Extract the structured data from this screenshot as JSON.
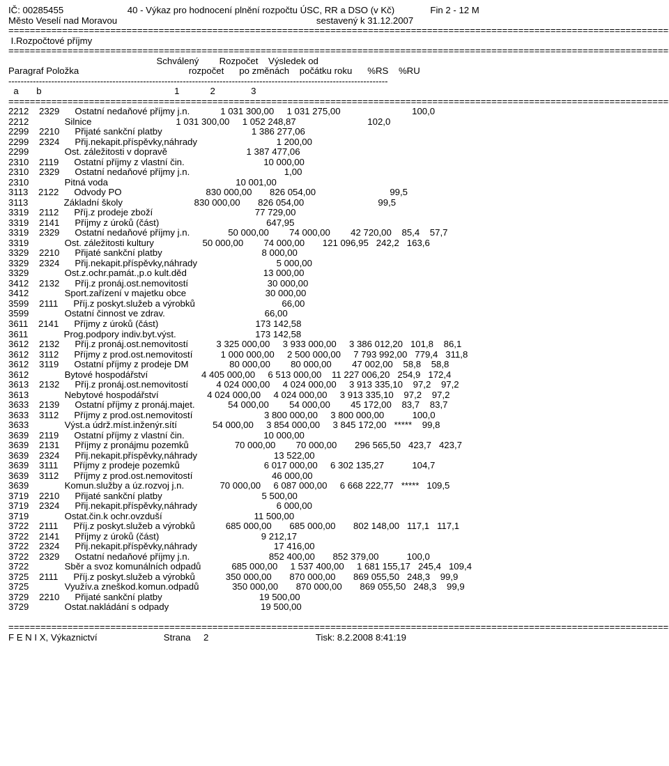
{
  "header": {
    "ic_label": "IČ:",
    "ic": "00285455",
    "title": "40 - Výkaz pro hodnocení plnění rozpočtu ÚSC, RR a DSO (v Kč)",
    "fin": "Fin 2 - 12 M",
    "city": "Město Veselí nad Moravou",
    "compiled": "sestavený k 31.12.2007"
  },
  "section": "I.Rozpočtové příjmy",
  "colhead": {
    "l1_c1": "Schválený",
    "l1_c2": "Rozpočet",
    "l1_c3": "Výsledek od",
    "l2_a": "Paragraf Položka",
    "l2_c1": "rozpočet",
    "l2_c2": "po změnách",
    "l2_c3": "počátku roku",
    "l2_rs": "%RS",
    "l2_ru": "%RU",
    "ab": "a       b",
    "n1": "1",
    "n2": "2",
    "n3": "3"
  },
  "rows": [
    {
      "p": "2212",
      "i": "2329",
      "d": "Ostatní nedaňové příjmy j.n.",
      "c1": "1 031 300,00",
      "c2": "1 031 275,00",
      "c3": "",
      "rs": "",
      "ru": "100,0"
    },
    {
      "p": "2212",
      "i": "",
      "d": "Silnice",
      "c1": "1 031 300,00",
      "c2": "1 052 248,87",
      "c3": "",
      "rs": "",
      "ru": "102,0"
    },
    {
      "p": "2299",
      "i": "2210",
      "d": "Přijaté sankční platby",
      "c1": "",
      "c2": "1 386 277,06",
      "c3": "",
      "rs": "",
      "ru": ""
    },
    {
      "p": "2299",
      "i": "2324",
      "d": "Přij.nekapit.příspěvky,náhrady",
      "c1": "",
      "c2": "1 200,00",
      "c3": "",
      "rs": "",
      "ru": ""
    },
    {
      "p": "2299",
      "i": "",
      "d": "Ost. záležitosti v dopravě",
      "c1": "",
      "c2": "1 387 477,06",
      "c3": "",
      "rs": "",
      "ru": ""
    },
    {
      "p": "2310",
      "i": "2119",
      "d": "Ostatní příjmy z vlastní čin.",
      "c1": "",
      "c2": "10 000,00",
      "c3": "",
      "rs": "",
      "ru": ""
    },
    {
      "p": "2310",
      "i": "2329",
      "d": "Ostatní nedaňové příjmy j.n.",
      "c1": "",
      "c2": "1,00",
      "c3": "",
      "rs": "",
      "ru": ""
    },
    {
      "p": "2310",
      "i": "",
      "d": "Pitná voda",
      "c1": "",
      "c2": "10 001,00",
      "c3": "",
      "rs": "",
      "ru": ""
    },
    {
      "p": "3113",
      "i": "2122",
      "d": "Odvody PO",
      "c1": "830 000,00",
      "c2": "826 054,00",
      "c3": "",
      "rs": "",
      "ru": "99,5"
    },
    {
      "p": "3113",
      "i": "",
      "d": "Základní školy",
      "c1": "830 000,00",
      "c2": "826 054,00",
      "c3": "",
      "rs": "",
      "ru": "99,5"
    },
    {
      "p": "3319",
      "i": "2112",
      "d": "Příj.z prodeje zboží",
      "c1": "",
      "c2": "77 729,00",
      "c3": "",
      "rs": "",
      "ru": ""
    },
    {
      "p": "3319",
      "i": "2141",
      "d": "Příjmy z úroků (část)",
      "c1": "",
      "c2": "647,95",
      "c3": "",
      "rs": "",
      "ru": ""
    },
    {
      "p": "3319",
      "i": "2329",
      "d": "Ostatní nedaňové příjmy j.n.",
      "c1": "50 000,00",
      "c2": "74 000,00",
      "c3": "42 720,00",
      "rs": "85,4",
      "ru": "57,7"
    },
    {
      "p": "3319",
      "i": "",
      "d": "Ost. záležitosti kultury",
      "c1": "50 000,00",
      "c2": "74 000,00",
      "c3": "121 096,95",
      "rs": "242,2",
      "ru": "163,6"
    },
    {
      "p": "3329",
      "i": "2210",
      "d": "Přijaté sankční platby",
      "c1": "",
      "c2": "8 000,00",
      "c3": "",
      "rs": "",
      "ru": ""
    },
    {
      "p": "3329",
      "i": "2324",
      "d": "Přij.nekapit.příspěvky,náhrady",
      "c1": "",
      "c2": "5 000,00",
      "c3": "",
      "rs": "",
      "ru": ""
    },
    {
      "p": "3329",
      "i": "",
      "d": "Ost.z.ochr.památ.,p.o kult.děd",
      "c1": "",
      "c2": "13 000,00",
      "c3": "",
      "rs": "",
      "ru": ""
    },
    {
      "p": "3412",
      "i": "2132",
      "d": "Příj.z pronáj.ost.nemovitostí",
      "c1": "",
      "c2": "30 000,00",
      "c3": "",
      "rs": "",
      "ru": ""
    },
    {
      "p": "3412",
      "i": "",
      "d": "Sport.zařízení v majetku obce",
      "c1": "",
      "c2": "30 000,00",
      "c3": "",
      "rs": "",
      "ru": ""
    },
    {
      "p": "3599",
      "i": "2111",
      "d": "Příj.z poskyt.služeb a výrobků",
      "c1": "",
      "c2": "66,00",
      "c3": "",
      "rs": "",
      "ru": ""
    },
    {
      "p": "3599",
      "i": "",
      "d": "Ostatní činnost ve zdrav.",
      "c1": "",
      "c2": "66,00",
      "c3": "",
      "rs": "",
      "ru": ""
    },
    {
      "p": "3611",
      "i": "2141",
      "d": "Příjmy z úroků (část)",
      "c1": "",
      "c2": "173 142,58",
      "c3": "",
      "rs": "",
      "ru": ""
    },
    {
      "p": "3611",
      "i": "",
      "d": "Prog.podpory indiv.byt.výst.",
      "c1": "",
      "c2": "173 142,58",
      "c3": "",
      "rs": "",
      "ru": ""
    },
    {
      "p": "3612",
      "i": "2132",
      "d": "Příj.z pronáj.ost.nemovitostí",
      "c1": "3 325 000,00",
      "c2": "3 933 000,00",
      "c3": "3 386 012,20",
      "rs": "101,8",
      "ru": "86,1"
    },
    {
      "p": "3612",
      "i": "3112",
      "d": "Příjmy z prod.ost.nemovitostí",
      "c1": "1 000 000,00",
      "c2": "2 500 000,00",
      "c3": "7 793 992,00",
      "rs": "779,4",
      "ru": "311,8"
    },
    {
      "p": "3612",
      "i": "3119",
      "d": "Ostatní příjmy z prodeje DM",
      "c1": "80 000,00",
      "c2": "80 000,00",
      "c3": "47 002,00",
      "rs": "58,8",
      "ru": "58,8"
    },
    {
      "p": "3612",
      "i": "",
      "d": "Bytové hospodářství",
      "c1": "4 405 000,00",
      "c2": "6 513 000,00",
      "c3": "11 227 006,20",
      "rs": "254,9",
      "ru": "172,4"
    },
    {
      "p": "3613",
      "i": "2132",
      "d": "Příj.z pronáj.ost.nemovitostí",
      "c1": "4 024 000,00",
      "c2": "4 024 000,00",
      "c3": "3 913 335,10",
      "rs": "97,2",
      "ru": "97,2"
    },
    {
      "p": "3613",
      "i": "",
      "d": "Nebytové hospodářství",
      "c1": "4 024 000,00",
      "c2": "4 024 000,00",
      "c3": "3 913 335,10",
      "rs": "97,2",
      "ru": "97,2"
    },
    {
      "p": "3633",
      "i": "2139",
      "d": "Ostatní příjmy z pronáj.majet.",
      "c1": "54 000,00",
      "c2": "54 000,00",
      "c3": "45 172,00",
      "rs": "83,7",
      "ru": "83,7"
    },
    {
      "p": "3633",
      "i": "3112",
      "d": "Příjmy z prod.ost.nemovitostí",
      "c1": "",
      "c2": "3 800 000,00",
      "c3": "3 800 000,00",
      "rs": "",
      "ru": "100,0"
    },
    {
      "p": "3633",
      "i": "",
      "d": "Výst.a údrž.míst.inženýr.sítí",
      "c1": "54 000,00",
      "c2": "3 854 000,00",
      "c3": "3 845 172,00",
      "rs": "*****",
      "ru": "99,8"
    },
    {
      "p": "3639",
      "i": "2119",
      "d": "Ostatní příjmy z vlastní čin.",
      "c1": "",
      "c2": "10 000,00",
      "c3": "",
      "rs": "",
      "ru": ""
    },
    {
      "p": "3639",
      "i": "2131",
      "d": "Příjmy z pronájmu pozemků",
      "c1": "70 000,00",
      "c2": "70 000,00",
      "c3": "296 565,50",
      "rs": "423,7",
      "ru": "423,7"
    },
    {
      "p": "3639",
      "i": "2324",
      "d": "Přij.nekapit.příspěvky,náhrady",
      "c1": "",
      "c2": "13 522,00",
      "c3": "",
      "rs": "",
      "ru": ""
    },
    {
      "p": "3639",
      "i": "3111",
      "d": "Příjmy z prodeje pozemků",
      "c1": "",
      "c2": "6 017 000,00",
      "c3": "6 302 135,27",
      "rs": "",
      "ru": "104,7"
    },
    {
      "p": "3639",
      "i": "3112",
      "d": "Příjmy z prod.ost.nemovitostí",
      "c1": "",
      "c2": "46 000,00",
      "c3": "",
      "rs": "",
      "ru": ""
    },
    {
      "p": "3639",
      "i": "",
      "d": "Komun.služby a úz.rozvoj j.n.",
      "c1": "70 000,00",
      "c2": "6 087 000,00",
      "c3": "6 668 222,77",
      "rs": "*****",
      "ru": "109,5"
    },
    {
      "p": "3719",
      "i": "2210",
      "d": "Přijaté sankční platby",
      "c1": "",
      "c2": "5 500,00",
      "c3": "",
      "rs": "",
      "ru": ""
    },
    {
      "p": "3719",
      "i": "2324",
      "d": "Přij.nekapit.příspěvky,náhrady",
      "c1": "",
      "c2": "6 000,00",
      "c3": "",
      "rs": "",
      "ru": ""
    },
    {
      "p": "3719",
      "i": "",
      "d": "Ostat.čin.k ochr.ovzduší",
      "c1": "",
      "c2": "11 500,00",
      "c3": "",
      "rs": "",
      "ru": ""
    },
    {
      "p": "3722",
      "i": "2111",
      "d": "Příj.z poskyt.služeb a výrobků",
      "c1": "685 000,00",
      "c2": "685 000,00",
      "c3": "802 148,00",
      "rs": "117,1",
      "ru": "117,1"
    },
    {
      "p": "3722",
      "i": "2141",
      "d": "Příjmy z úroků (část)",
      "c1": "",
      "c2": "9 212,17",
      "c3": "",
      "rs": "",
      "ru": ""
    },
    {
      "p": "3722",
      "i": "2324",
      "d": "Přij.nekapit.příspěvky,náhrady",
      "c1": "",
      "c2": "17 416,00",
      "c3": "",
      "rs": "",
      "ru": ""
    },
    {
      "p": "3722",
      "i": "2329",
      "d": "Ostatní nedaňové příjmy j.n.",
      "c1": "",
      "c2": "852 400,00",
      "c3": "852 379,00",
      "rs": "",
      "ru": "100,0"
    },
    {
      "p": "3722",
      "i": "",
      "d": "Sběr a svoz komunálních odpadů",
      "c1": "685 000,00",
      "c2": "1 537 400,00",
      "c3": "1 681 155,17",
      "rs": "245,4",
      "ru": "109,4"
    },
    {
      "p": "3725",
      "i": "2111",
      "d": "Příj.z poskyt.služeb a výrobků",
      "c1": "350 000,00",
      "c2": "870 000,00",
      "c3": "869 055,50",
      "rs": "248,3",
      "ru": "99,9"
    },
    {
      "p": "3725",
      "i": "",
      "d": "Využív.a zneškod.komun.odpadů",
      "c1": "350 000,00",
      "c2": "870 000,00",
      "c3": "869 055,50",
      "rs": "248,3",
      "ru": "99,9"
    },
    {
      "p": "3729",
      "i": "2210",
      "d": "Přijaté sankční platby",
      "c1": "",
      "c2": "19 500,00",
      "c3": "",
      "rs": "",
      "ru": ""
    },
    {
      "p": "3729",
      "i": "",
      "d": "Ostat.nakládání s odpady",
      "c1": "",
      "c2": "19 500,00",
      "c3": "",
      "rs": "",
      "ru": ""
    }
  ],
  "footer": {
    "left": "F E N I X, Výkaznictví",
    "center": "Strana",
    "page": "2",
    "right_label": "Tisk:",
    "right_val": "8.2.2008 8:41:19"
  },
  "style": {
    "line_width": 124,
    "cols": {
      "p": 0,
      "i": 8,
      "d": 18,
      "c1_end": 70,
      "c2_end": 87,
      "c3_end": 104,
      "rs_end": 112,
      "ru_end": 120
    }
  }
}
